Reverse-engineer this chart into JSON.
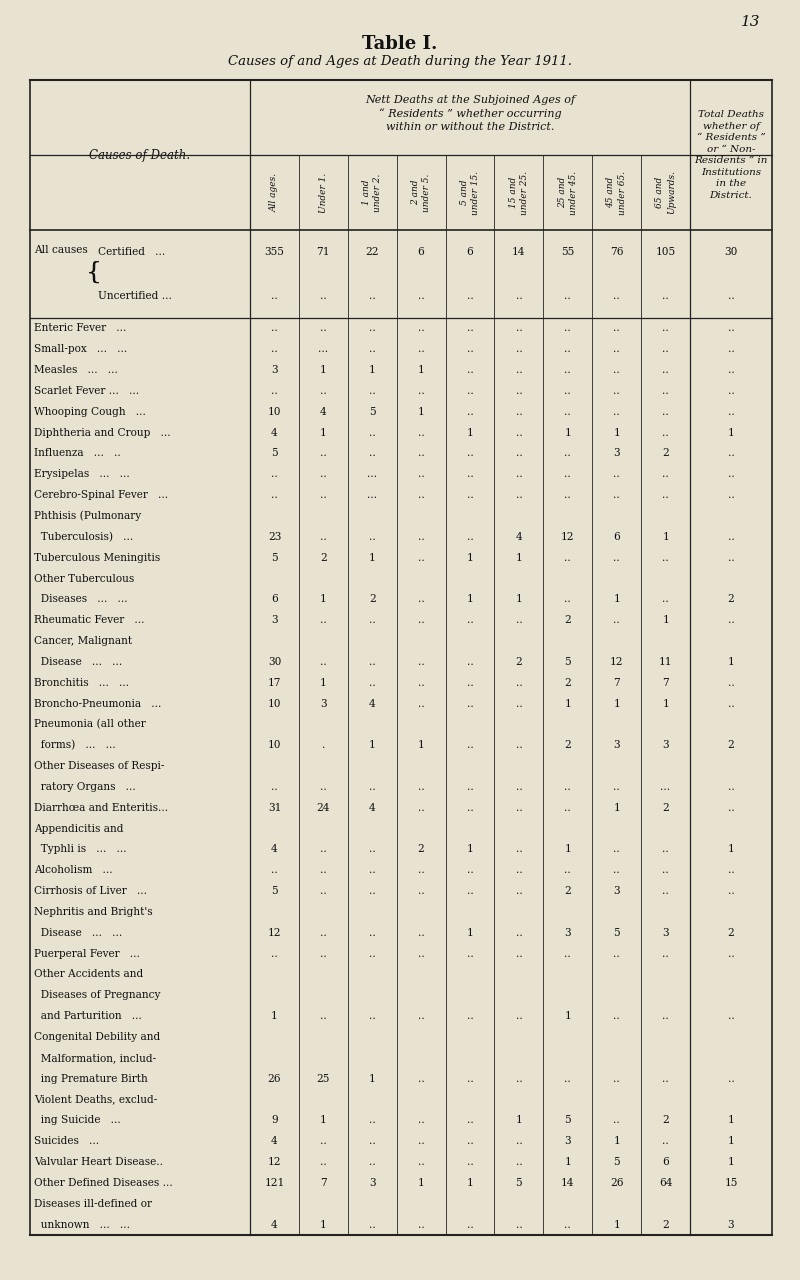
{
  "title1": "Table I.",
  "title2": "Causes of and Ages at Death during the Year 1911.",
  "page_number": "13",
  "bg_color": "#e8e2d0",
  "rows": [
    {
      "label1": "All causes ",
      "label2": "Certified   ...",
      "brace": true,
      "vals": [
        "355",
        "71",
        "22",
        "6",
        "6",
        "14",
        "55",
        "76",
        "105",
        "30"
      ]
    },
    {
      "label1": "",
      "label2": "Uncertified ...",
      "brace": true,
      "vals": [
        "..",
        "..",
        "..",
        "..",
        "..",
        "..",
        "..",
        "..",
        "..",
        ".."
      ]
    },
    {
      "label1": "Enteric Fever",
      "label2": "...",
      "brace": false,
      "vals": [
        "..",
        "..",
        "..",
        "..",
        "..",
        "..",
        "..",
        "..",
        "..",
        ".."
      ]
    },
    {
      "label1": "Small-pox",
      "label2": "...   ...",
      "brace": false,
      "vals": [
        "..",
        "...",
        "..",
        "..",
        "..",
        "..",
        "..",
        "..",
        "..",
        ".."
      ]
    },
    {
      "label1": "Measles",
      "label2": "...   ...",
      "brace": false,
      "vals": [
        "3",
        "1",
        "1",
        "1",
        "..",
        "..",
        "..",
        "..",
        "..",
        ".."
      ]
    },
    {
      "label1": "Scarlet Fever ...",
      "label2": "...",
      "brace": false,
      "vals": [
        "..",
        "..",
        "..",
        "..",
        "..",
        "..",
        "..",
        "..",
        "..",
        ".."
      ]
    },
    {
      "label1": "Whooping Cough",
      "label2": "...",
      "brace": false,
      "vals": [
        "10",
        "4",
        "5",
        "1",
        "..",
        "..",
        "..",
        "..",
        "..",
        ".."
      ]
    },
    {
      "label1": "Diphtheria and Croup",
      "label2": "...",
      "brace": false,
      "vals": [
        "4",
        "1",
        "..",
        "..",
        "1",
        "..",
        "1",
        "1",
        "..",
        "1"
      ]
    },
    {
      "label1": "Influenza",
      "label2": "...   ..",
      "brace": false,
      "vals": [
        "5",
        "..",
        "..",
        "..",
        "..",
        "..",
        "..",
        "3",
        "2",
        ".."
      ]
    },
    {
      "label1": "Erysipelas",
      "label2": "...   ...",
      "brace": false,
      "vals": [
        "..",
        "..",
        "...",
        "..",
        "..",
        "..",
        "..",
        "..",
        "..",
        ".."
      ]
    },
    {
      "label1": "Cerebro-Spinal Fever",
      "label2": "...",
      "brace": false,
      "vals": [
        "..",
        "..",
        "...",
        "..",
        "..",
        "..",
        "..",
        "..",
        "..",
        ".."
      ]
    },
    {
      "label1": "Phthisis (Pulmonary",
      "label2": "",
      "brace": false,
      "vals": [
        "",
        "",
        "",
        "",
        "",
        "",
        "",
        "",
        "",
        ""
      ]
    },
    {
      "label1": "  Tuberculosis)",
      "label2": "...",
      "brace": false,
      "vals": [
        "23",
        "..",
        "..",
        "..",
        "..",
        "4",
        "12",
        "6",
        "1",
        ".."
      ]
    },
    {
      "label1": "Tuberculous Meningitis",
      "label2": "",
      "brace": false,
      "vals": [
        "5",
        "2",
        "1",
        "..",
        "1",
        "1",
        "..",
        "..",
        "..",
        ".."
      ]
    },
    {
      "label1": "Other Tuberculous",
      "label2": "",
      "brace": false,
      "vals": [
        "",
        "",
        "",
        "",
        "",
        "",
        "",
        "",
        "",
        ""
      ]
    },
    {
      "label1": "  Diseases",
      "label2": "...   ...",
      "brace": false,
      "vals": [
        "6",
        "1",
        "2",
        "..",
        "1",
        "1",
        "..",
        "1",
        "..",
        "2"
      ]
    },
    {
      "label1": "Rheumatic Fever",
      "label2": "...",
      "brace": false,
      "vals": [
        "3",
        "..",
        "..",
        "..",
        "..",
        "..",
        "2",
        "..",
        "1",
        ".."
      ]
    },
    {
      "label1": "Cancer, Malignant",
      "label2": "",
      "brace": false,
      "vals": [
        "",
        "",
        "",
        "",
        "",
        "",
        "",
        "",
        "",
        ""
      ]
    },
    {
      "label1": "  Disease",
      "label2": "...   ...",
      "brace": false,
      "vals": [
        "30",
        "..",
        "..",
        "..",
        "..",
        "2",
        "5",
        "12",
        "11",
        "1"
      ]
    },
    {
      "label1": "Bronchitis",
      "label2": "...   ...",
      "brace": false,
      "vals": [
        "17",
        "1",
        "..",
        "..",
        "..",
        "..",
        "2",
        "7",
        "7",
        ".."
      ]
    },
    {
      "label1": "Broncho-Pneumonia",
      "label2": "...",
      "brace": false,
      "vals": [
        "10",
        "3",
        "4",
        "..",
        "..",
        "..",
        "1",
        "1",
        "1",
        ".."
      ]
    },
    {
      "label1": "Pneumonia (all other",
      "label2": "",
      "brace": false,
      "vals": [
        "",
        "",
        "",
        "",
        "",
        "",
        "",
        "",
        "",
        ""
      ]
    },
    {
      "label1": "  forms)",
      "label2": "...   ...",
      "brace": false,
      "vals": [
        "10",
        ".",
        "1",
        "1",
        "..",
        "..",
        "2",
        "3",
        "3",
        "2"
      ]
    },
    {
      "label1": "Other Diseases of Respi-",
      "label2": "",
      "brace": false,
      "vals": [
        "",
        "",
        "",
        "",
        "",
        "",
        "",
        "",
        "",
        ""
      ]
    },
    {
      "label1": "  ratory Organs",
      "label2": "...",
      "brace": false,
      "vals": [
        "..",
        "..",
        "..",
        "..",
        "..",
        "..",
        "..",
        "..",
        "...",
        ".."
      ]
    },
    {
      "label1": "Diarrhœa and Enteritis...",
      "label2": "",
      "brace": false,
      "vals": [
        "31",
        "24",
        "4",
        "..",
        "..",
        "..",
        "..",
        "1",
        "2",
        ".."
      ]
    },
    {
      "label1": "Appendicitis and",
      "label2": "",
      "brace": false,
      "vals": [
        "",
        "",
        "",
        "",
        "",
        "",
        "",
        "",
        "",
        ""
      ]
    },
    {
      "label1": "  Typhli is",
      "label2": "...   ...",
      "brace": false,
      "vals": [
        "4",
        "..",
        "..",
        "2",
        "1",
        "..",
        "1",
        "..",
        "..",
        "1"
      ]
    },
    {
      "label1": "Alcoholism",
      "label2": "...",
      "brace": false,
      "vals": [
        "..",
        "..",
        "..",
        "..",
        "..",
        "..",
        "..",
        "..",
        "..",
        ".."
      ]
    },
    {
      "label1": "Cirrhosis of Liver",
      "label2": "...",
      "brace": false,
      "vals": [
        "5",
        "..",
        "..",
        "..",
        "..",
        "..",
        "2",
        "3",
        "..",
        ".."
      ]
    },
    {
      "label1": "Nephritis and Bright's",
      "label2": "",
      "brace": false,
      "vals": [
        "",
        "",
        "",
        "",
        "",
        "",
        "",
        "",
        "",
        ""
      ]
    },
    {
      "label1": "  Disease",
      "label2": "...   ...",
      "brace": false,
      "vals": [
        "12",
        "..",
        "..",
        "..",
        "1",
        "..",
        "3",
        "5",
        "3",
        "2"
      ]
    },
    {
      "label1": "Puerperal Fever",
      "label2": "...",
      "brace": false,
      "vals": [
        "..",
        "..",
        "..",
        "..",
        "..",
        "..",
        "..",
        "..",
        "..",
        ".."
      ]
    },
    {
      "label1": "Other Accidents and",
      "label2": "",
      "brace": false,
      "vals": [
        "",
        "",
        "",
        "",
        "",
        "",
        "",
        "",
        "",
        ""
      ]
    },
    {
      "label1": "  Diseases of Pregnancy",
      "label2": "",
      "brace": false,
      "vals": [
        "",
        "",
        "",
        "",
        "",
        "",
        "",
        "",
        "",
        ""
      ]
    },
    {
      "label1": "  and Parturition",
      "label2": "...",
      "brace": false,
      "vals": [
        "1",
        "..",
        "..",
        "..",
        "..",
        "..",
        "1",
        "..",
        "..",
        ".."
      ]
    },
    {
      "label1": "Congenital Debility and",
      "label2": "",
      "brace": false,
      "vals": [
        "",
        "",
        "",
        "",
        "",
        "",
        "",
        "",
        "",
        ""
      ]
    },
    {
      "label1": "  Malformation, includ-",
      "label2": "",
      "brace": false,
      "vals": [
        "",
        "",
        "",
        "",
        "",
        "",
        "",
        "",
        "",
        ""
      ]
    },
    {
      "label1": "  ing Premature Birth",
      "label2": "",
      "brace": false,
      "vals": [
        "26",
        "25",
        "1",
        "..",
        "..",
        "..",
        "..",
        "..",
        "..",
        ".."
      ]
    },
    {
      "label1": "Violent Deaths, exclud-",
      "label2": "",
      "brace": false,
      "vals": [
        "",
        "",
        "",
        "",
        "",
        "",
        "",
        "",
        "",
        ""
      ]
    },
    {
      "label1": "  ing Suicide",
      "label2": "...",
      "brace": false,
      "vals": [
        "9",
        "1",
        "..",
        "..",
        "..",
        "1",
        "5",
        "..",
        "2",
        "1"
      ]
    },
    {
      "label1": "Suicides",
      "label2": "...",
      "brace": false,
      "vals": [
        "4",
        "..",
        "..",
        "..",
        "..",
        "..",
        "3",
        "1",
        "..",
        "1"
      ]
    },
    {
      "label1": "Valvular Heart Disease..",
      "label2": "",
      "brace": false,
      "vals": [
        "12",
        "..",
        "..",
        "..",
        "..",
        "..",
        "1",
        "5",
        "6",
        "1"
      ]
    },
    {
      "label1": "Other Defined Diseases ...",
      "label2": "",
      "brace": false,
      "vals": [
        "121",
        "7",
        "3",
        "1",
        "1",
        "5",
        "14",
        "26",
        "64",
        "15"
      ]
    },
    {
      "label1": "Diseases ill-defined or",
      "label2": "",
      "brace": false,
      "vals": [
        "",
        "",
        "",
        "",
        "",
        "",
        "",
        "",
        "",
        ""
      ]
    },
    {
      "label1": "  unknown",
      "label2": "...   ...",
      "brace": false,
      "vals": [
        "4",
        "1",
        "..",
        "..",
        "..",
        "..",
        "..",
        "1",
        "2",
        "3"
      ]
    }
  ]
}
